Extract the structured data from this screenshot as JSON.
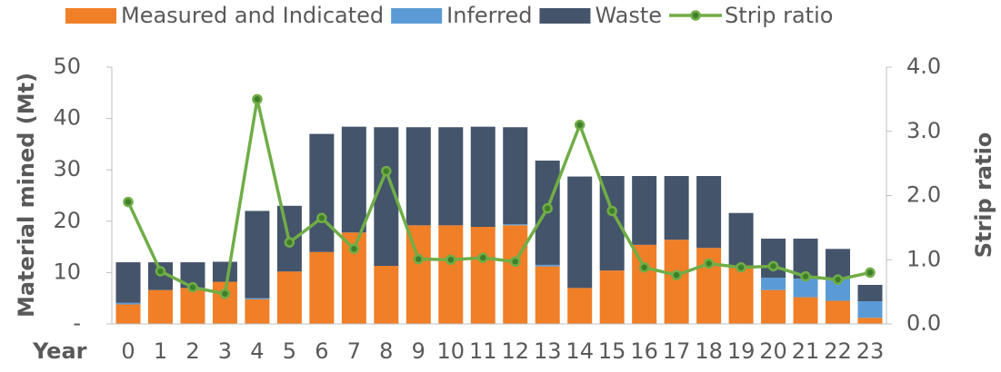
{
  "chart_data": {
    "type": "bar",
    "stacked": true,
    "x_label": "Year",
    "y_label": "Material mined (Mt)",
    "y2_label": "Strip ratio",
    "categories": [
      "0",
      "1",
      "2",
      "3",
      "4",
      "5",
      "6",
      "7",
      "8",
      "9",
      "10",
      "11",
      "12",
      "13",
      "14",
      "15",
      "16",
      "17",
      "18",
      "19",
      "20",
      "21",
      "22",
      "23"
    ],
    "series": [
      {
        "name": "Measured and Indicated",
        "color": "#f07f27",
        "type": "bar",
        "values": [
          3.8,
          6.6,
          7.0,
          8.2,
          4.8,
          10.2,
          14.0,
          17.8,
          11.3,
          19.2,
          19.2,
          18.9,
          19.2,
          11.2,
          7.0,
          10.4,
          15.4,
          16.4,
          14.8,
          11.4,
          6.6,
          5.2,
          4.5,
          1.2
        ]
      },
      {
        "name": "Inferred",
        "color": "#5b9bd5",
        "type": "bar",
        "values": [
          0.3,
          0,
          0,
          0,
          0.2,
          0,
          0,
          0,
          0,
          0,
          0,
          0,
          0.2,
          0.3,
          0,
          0,
          0,
          0,
          0,
          0,
          2.4,
          3.6,
          4.3,
          3.2
        ]
      },
      {
        "name": "Waste",
        "color": "#44546a",
        "type": "bar",
        "values": [
          7.9,
          5.4,
          5.0,
          3.9,
          17.0,
          12.8,
          23.0,
          20.6,
          27.0,
          19.1,
          19.1,
          19.5,
          18.9,
          20.3,
          21.7,
          18.4,
          13.4,
          12.4,
          14.0,
          10.2,
          7.6,
          7.8,
          5.8,
          3.2
        ]
      },
      {
        "name": "Strip ratio",
        "color": "#70ad47",
        "type": "line",
        "axis": "y2",
        "values": [
          1.9,
          0.82,
          0.57,
          0.47,
          3.5,
          1.27,
          1.65,
          1.17,
          2.38,
          1.01,
          1.0,
          1.03,
          0.97,
          1.8,
          3.1,
          1.76,
          0.88,
          0.76,
          0.94,
          0.88,
          0.9,
          0.74,
          0.69,
          0.8
        ]
      }
    ],
    "ylim": [
      0,
      50
    ],
    "yticks": [
      {
        "value": 0,
        "label": "-"
      },
      10,
      20,
      30,
      40,
      50
    ],
    "y2lim": [
      0,
      4
    ],
    "y2ticks": [
      {
        "value": 0,
        "label": "0.0"
      },
      {
        "value": 1,
        "label": "1.0"
      },
      {
        "value": 2,
        "label": "2.0"
      },
      {
        "value": 3,
        "label": "3.0"
      },
      {
        "value": 4,
        "label": "4.0"
      }
    ],
    "legend": "top"
  }
}
